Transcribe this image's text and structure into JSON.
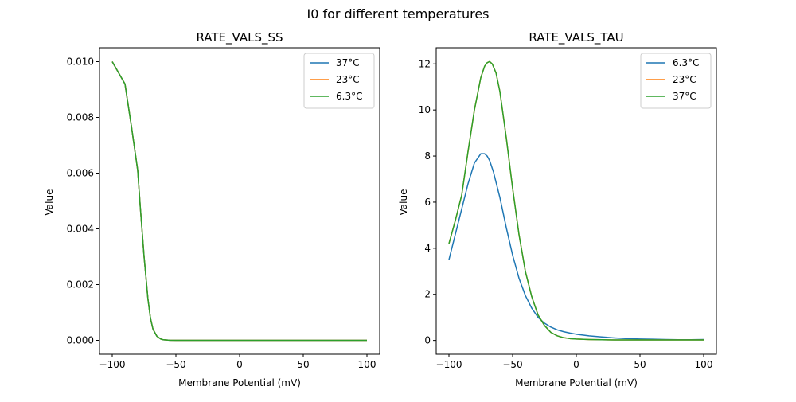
{
  "figure": {
    "suptitle": "I0 for different temperatures"
  },
  "chart_data": [
    {
      "type": "line",
      "title": "RATE_VALS_SS",
      "xlabel": "Membrane Potential (mV)",
      "ylabel": "Value",
      "xlim": [
        -110,
        110
      ],
      "ylim": [
        -0.0005,
        0.0105
      ],
      "xticks": [
        -100,
        -50,
        0,
        50,
        100
      ],
      "yticks": [
        0.0,
        0.002,
        0.004,
        0.006,
        0.008,
        0.01
      ],
      "xtick_labels": [
        "−100",
        "−50",
        "0",
        "50",
        "100"
      ],
      "ytick_labels": [
        "0.000",
        "0.002",
        "0.004",
        "0.006",
        "0.008",
        "0.010"
      ],
      "grid": false,
      "legend": "top-right",
      "series": [
        {
          "name": "37°C",
          "color": "#1f77b4",
          "x": [
            -100,
            -95,
            -90,
            -85,
            -80,
            -78,
            -75,
            -72,
            -70,
            -68,
            -65,
            -62,
            -60,
            -55,
            -50,
            0,
            50,
            100
          ],
          "y": [
            0.01,
            0.0096,
            0.0092,
            0.0077,
            0.0061,
            0.0048,
            0.003,
            0.0015,
            0.0008,
            0.0004,
            0.00015,
            5e-05,
            2e-05,
            5e-06,
            0.0,
            0.0,
            0.0,
            0.0
          ]
        },
        {
          "name": "23°C",
          "color": "#ff7f0e",
          "x": [
            -100,
            -95,
            -90,
            -85,
            -80,
            -78,
            -75,
            -72,
            -70,
            -68,
            -65,
            -62,
            -60,
            -55,
            -50,
            0,
            50,
            100
          ],
          "y": [
            0.01,
            0.0096,
            0.0092,
            0.0077,
            0.0061,
            0.0048,
            0.003,
            0.0015,
            0.0008,
            0.0004,
            0.00015,
            5e-05,
            2e-05,
            5e-06,
            0.0,
            0.0,
            0.0,
            0.0
          ]
        },
        {
          "name": "6.3°C",
          "color": "#2ca02c",
          "x": [
            -100,
            -95,
            -90,
            -85,
            -80,
            -78,
            -75,
            -72,
            -70,
            -68,
            -65,
            -62,
            -60,
            -55,
            -50,
            0,
            50,
            100
          ],
          "y": [
            0.01,
            0.0096,
            0.0092,
            0.0077,
            0.0061,
            0.0048,
            0.003,
            0.0015,
            0.0008,
            0.0004,
            0.00015,
            5e-05,
            2e-05,
            5e-06,
            0.0,
            0.0,
            0.0,
            0.0
          ]
        }
      ]
    },
    {
      "type": "line",
      "title": "RATE_VALS_TAU",
      "xlabel": "Membrane Potential (mV)",
      "ylabel": "Value",
      "xlim": [
        -110,
        110
      ],
      "ylim": [
        -0.6,
        12.7
      ],
      "xticks": [
        -100,
        -50,
        0,
        50,
        100
      ],
      "yticks": [
        0,
        2,
        4,
        6,
        8,
        10,
        12
      ],
      "xtick_labels": [
        "−100",
        "−50",
        "0",
        "50",
        "100"
      ],
      "ytick_labels": [
        "0",
        "2",
        "4",
        "6",
        "8",
        "10",
        "12"
      ],
      "grid": false,
      "legend": "top-right",
      "series": [
        {
          "name": "6.3°C",
          "color": "#1f77b4",
          "x": [
            -100,
            -95,
            -90,
            -85,
            -80,
            -75,
            -72,
            -70,
            -68,
            -65,
            -60,
            -55,
            -50,
            -45,
            -40,
            -35,
            -30,
            -25,
            -20,
            -15,
            -10,
            -5,
            0,
            10,
            20,
            30,
            40,
            50,
            60,
            70,
            80,
            90,
            100
          ],
          "y": [
            3.5,
            4.6,
            5.7,
            6.8,
            7.7,
            8.1,
            8.1,
            8.0,
            7.8,
            7.3,
            6.2,
            4.9,
            3.7,
            2.7,
            1.95,
            1.4,
            1.0,
            0.75,
            0.58,
            0.46,
            0.38,
            0.32,
            0.27,
            0.2,
            0.15,
            0.11,
            0.08,
            0.06,
            0.05,
            0.04,
            0.03,
            0.03,
            0.04
          ]
        },
        {
          "name": "23°C",
          "color": "#ff7f0e",
          "x": [
            -100,
            -95,
            -90,
            -85,
            -80,
            -75,
            -72,
            -70,
            -68,
            -66,
            -63,
            -60,
            -55,
            -50,
            -45,
            -40,
            -35,
            -30,
            -25,
            -20,
            -15,
            -10,
            -5,
            0,
            10,
            20,
            30,
            40,
            50,
            60,
            70,
            80,
            90,
            100
          ],
          "y": [
            4.2,
            5.2,
            6.3,
            8.2,
            10.0,
            11.4,
            11.9,
            12.05,
            12.1,
            12.0,
            11.6,
            10.8,
            8.8,
            6.6,
            4.6,
            3.0,
            1.9,
            1.1,
            0.65,
            0.35,
            0.2,
            0.12,
            0.08,
            0.06,
            0.04,
            0.03,
            0.02,
            0.02,
            0.02,
            0.02,
            0.02,
            0.02,
            0.02,
            0.02
          ]
        },
        {
          "name": "37°C",
          "color": "#2ca02c",
          "x": [
            -100,
            -95,
            -90,
            -85,
            -80,
            -75,
            -72,
            -70,
            -68,
            -66,
            -63,
            -60,
            -55,
            -50,
            -45,
            -40,
            -35,
            -30,
            -25,
            -20,
            -15,
            -10,
            -5,
            0,
            10,
            20,
            30,
            40,
            50,
            60,
            70,
            80,
            90,
            100
          ],
          "y": [
            4.2,
            5.2,
            6.3,
            8.2,
            10.0,
            11.4,
            11.9,
            12.05,
            12.1,
            12.0,
            11.6,
            10.8,
            8.8,
            6.6,
            4.6,
            3.0,
            1.9,
            1.1,
            0.65,
            0.35,
            0.2,
            0.12,
            0.08,
            0.06,
            0.04,
            0.03,
            0.02,
            0.02,
            0.02,
            0.02,
            0.02,
            0.02,
            0.02,
            0.02
          ]
        }
      ]
    }
  ]
}
